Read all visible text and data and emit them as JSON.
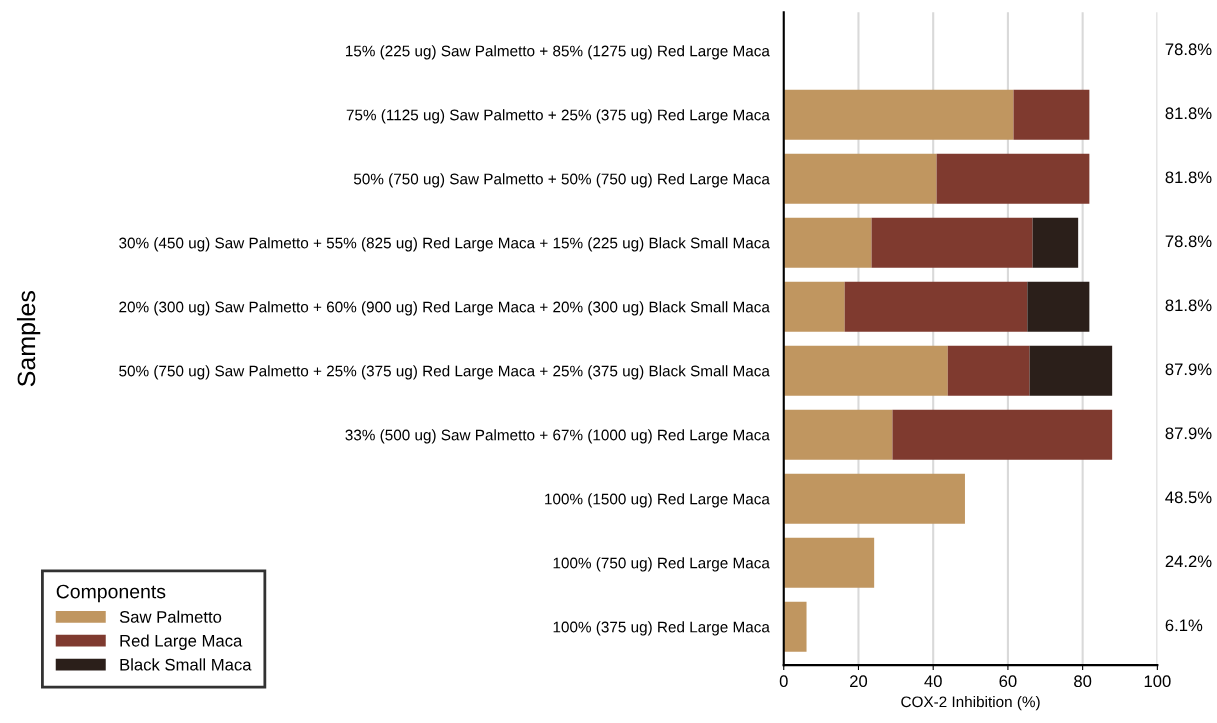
{
  "chart_data": {
    "type": "bar",
    "orientation": "horizontal",
    "stacked": true,
    "xlabel": "COX-2 Inhibition (%)",
    "ylabel": "Samples",
    "legend_title": "Components",
    "legend": "bottom left",
    "categories": [
      "15% (225 ug) Saw Palmetto + 85% (1275 ug) Red Large Maca",
      "75% (1125 ug) Saw Palmetto + 25% (375 ug) Red Large Maca",
      "50% (750 ug) Saw Palmetto + 50% (750 ug) Red Large Maca",
      "30% (450 ug) Saw Palmetto + 55% (825 ug) Red Large Maca + 15% (225 ug) Black Small Maca",
      "20% (300 ug) Saw Palmetto + 60% (900 ug) Red Large Maca + 20% (300 ug) Black Small Maca",
      "50% (750 ug) Saw Palmetto + 25% (375 ug) Red Large Maca + 25% (375 ug) Black Small Maca",
      "33% (500 ug) Saw Palmetto + 67% (1000 ug) Red Large Maca",
      "100% (1500 ug) Red Large Maca",
      "100% (750 ug) Red Large Maca",
      "100% (375 ug) Red Large Maca"
    ],
    "series": [
      {
        "name": "Saw Palmetto",
        "color": "#c09660",
        "values": [
          null,
          61.5,
          40.9,
          23.5,
          16.3,
          43.9,
          29.1,
          48.5,
          24.2,
          6.1
        ]
      },
      {
        "name": "Red Large Maca",
        "color": "#7f3a2f",
        "values": [
          null,
          20.3,
          40.9,
          43.1,
          48.9,
          21.9,
          58.8,
          null,
          null,
          null
        ]
      },
      {
        "name": "Black Small Maca",
        "color": "#2b1f1a",
        "values": [
          null,
          null,
          null,
          12.2,
          16.6,
          22.1,
          null,
          null,
          null,
          null
        ]
      }
    ],
    "value_labels": [
      "78.8%",
      "81.8%",
      "81.8%",
      "78.8%",
      "81.8%",
      "87.9%",
      "87.9%",
      "48.5%",
      "24.2%",
      "6.1%"
    ],
    "xlim": [
      0,
      100
    ],
    "xticks": [
      0,
      20,
      40,
      60,
      80,
      100
    ],
    "grid": "x"
  }
}
